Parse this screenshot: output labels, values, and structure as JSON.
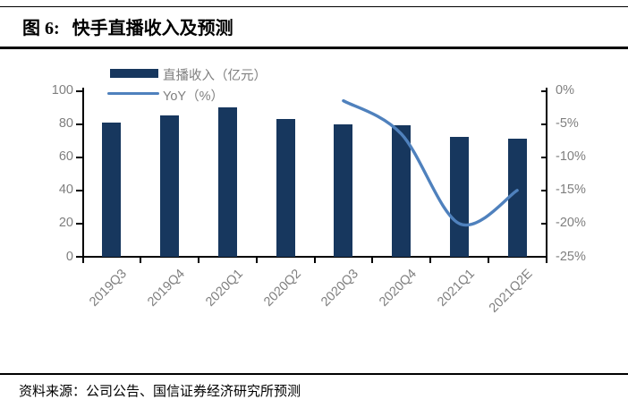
{
  "figure": {
    "title_prefix": "图 6:",
    "title_text": "快手直播收入及预测",
    "source": "资料来源：公司公告、国信证券经济研究所预测"
  },
  "legend": [
    {
      "label": "直播收入（亿元）",
      "type": "bar",
      "color": "#17375E"
    },
    {
      "label": "YoY（%）",
      "type": "line",
      "color": "#4F81BD"
    }
  ],
  "chart_data": {
    "type": "combo",
    "categories": [
      "2019Q3",
      "2019Q4",
      "2020Q1",
      "2020Q2",
      "2020Q3",
      "2020Q4",
      "2021Q1",
      "2021Q2E"
    ],
    "series": [
      {
        "name": "直播收入（亿元）",
        "type": "bar",
        "axis": "left",
        "color": "#17375E",
        "values": [
          81,
          85,
          90,
          83,
          80,
          79,
          72.5,
          71
        ]
      },
      {
        "name": "YoY（%）",
        "type": "line",
        "axis": "right",
        "color": "#4F81BD",
        "values": [
          null,
          null,
          null,
          null,
          -1.5,
          -6.5,
          -20,
          -15
        ]
      }
    ],
    "left_axis": {
      "title": "",
      "ticks": [
        0,
        20,
        40,
        60,
        80,
        100
      ],
      "range": [
        0,
        100
      ]
    },
    "right_axis": {
      "title": "",
      "ticks": [
        "0%",
        "-5%",
        "-10%",
        "-15%",
        "-20%",
        "-25%"
      ],
      "range": [
        -25,
        0
      ]
    },
    "grid": false,
    "legend_position": "top-left",
    "axis_color": "#000000",
    "label_color": "#7f7f7f"
  }
}
